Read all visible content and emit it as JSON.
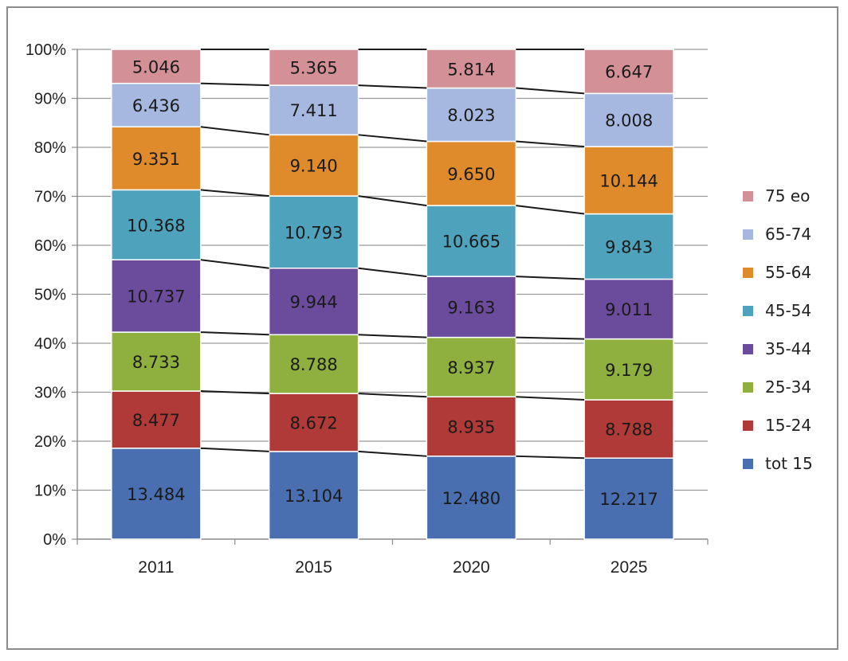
{
  "chart_data": {
    "type": "bar",
    "stacked": true,
    "normalized_percent": true,
    "categories": [
      "2011",
      "2015",
      "2020",
      "2025"
    ],
    "ylim": [
      0,
      100
    ],
    "y_ticks": [
      "0%",
      "10%",
      "20%",
      "30%",
      "40%",
      "50%",
      "60%",
      "70%",
      "80%",
      "90%",
      "100%"
    ],
    "grid": true,
    "connector_lines": true,
    "legend_position": "right",
    "title": "",
    "xlabel": "",
    "ylabel": "",
    "series": [
      {
        "name": "tot 15",
        "color": "#4a6fb1",
        "values": [
          13.484,
          13.104,
          12.48,
          12.217
        ],
        "labels": [
          "13.484",
          "13.104",
          "12.480",
          "12.217"
        ]
      },
      {
        "name": "15-24",
        "color": "#b03a37",
        "values": [
          8.477,
          8.672,
          8.935,
          8.788
        ],
        "labels": [
          "8.477",
          "8.672",
          "8.935",
          "8.788"
        ]
      },
      {
        "name": "25-34",
        "color": "#8fb03f",
        "values": [
          8.733,
          8.788,
          8.937,
          9.179
        ],
        "labels": [
          "8.733",
          "8.788",
          "8.937",
          "9.179"
        ]
      },
      {
        "name": "35-44",
        "color": "#6b4b9c",
        "values": [
          10.737,
          9.944,
          9.163,
          9.011
        ],
        "labels": [
          "10.737",
          "9.944",
          "9.163",
          "9.011"
        ]
      },
      {
        "name": "45-54",
        "color": "#4ea2bb",
        "values": [
          10.368,
          10.793,
          10.665,
          9.843
        ],
        "labels": [
          "10.368",
          "10.793",
          "10.665",
          "9.843"
        ]
      },
      {
        "name": "55-64",
        "color": "#df8a2b",
        "values": [
          9.351,
          9.14,
          9.65,
          10.144
        ],
        "labels": [
          "9.351",
          "9.140",
          "9.650",
          "10.144"
        ]
      },
      {
        "name": "65-74",
        "color": "#a6b8e0",
        "values": [
          6.436,
          7.411,
          8.023,
          8.008
        ],
        "labels": [
          "6.436",
          "7.411",
          "8.023",
          "8.008"
        ]
      },
      {
        "name": "75 eo",
        "color": "#d39197",
        "values": [
          5.046,
          5.365,
          5.814,
          6.647
        ],
        "labels": [
          "5.046",
          "5.365",
          "5.814",
          "6.647"
        ]
      }
    ]
  }
}
